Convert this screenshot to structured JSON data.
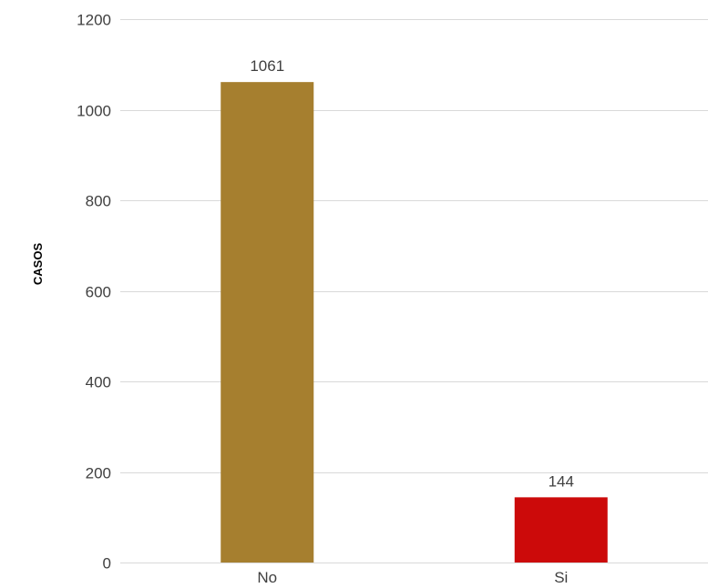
{
  "chart_data": {
    "type": "bar",
    "title": "",
    "xlabel": "",
    "ylabel": "CASOS",
    "categories": [
      "No",
      "Si"
    ],
    "values": [
      1061,
      144
    ],
    "data_labels": [
      "1061",
      "144"
    ],
    "bar_colors": [
      "#a67f2f",
      "#cc0a0a"
    ],
    "ylim": [
      0,
      1200
    ],
    "yticks": [
      0,
      200,
      400,
      600,
      800,
      1000,
      1200
    ],
    "ytick_labels": [
      "0",
      "200",
      "400",
      "600",
      "800",
      "1000",
      "1200"
    ],
    "grid": true,
    "legend": "none"
  }
}
